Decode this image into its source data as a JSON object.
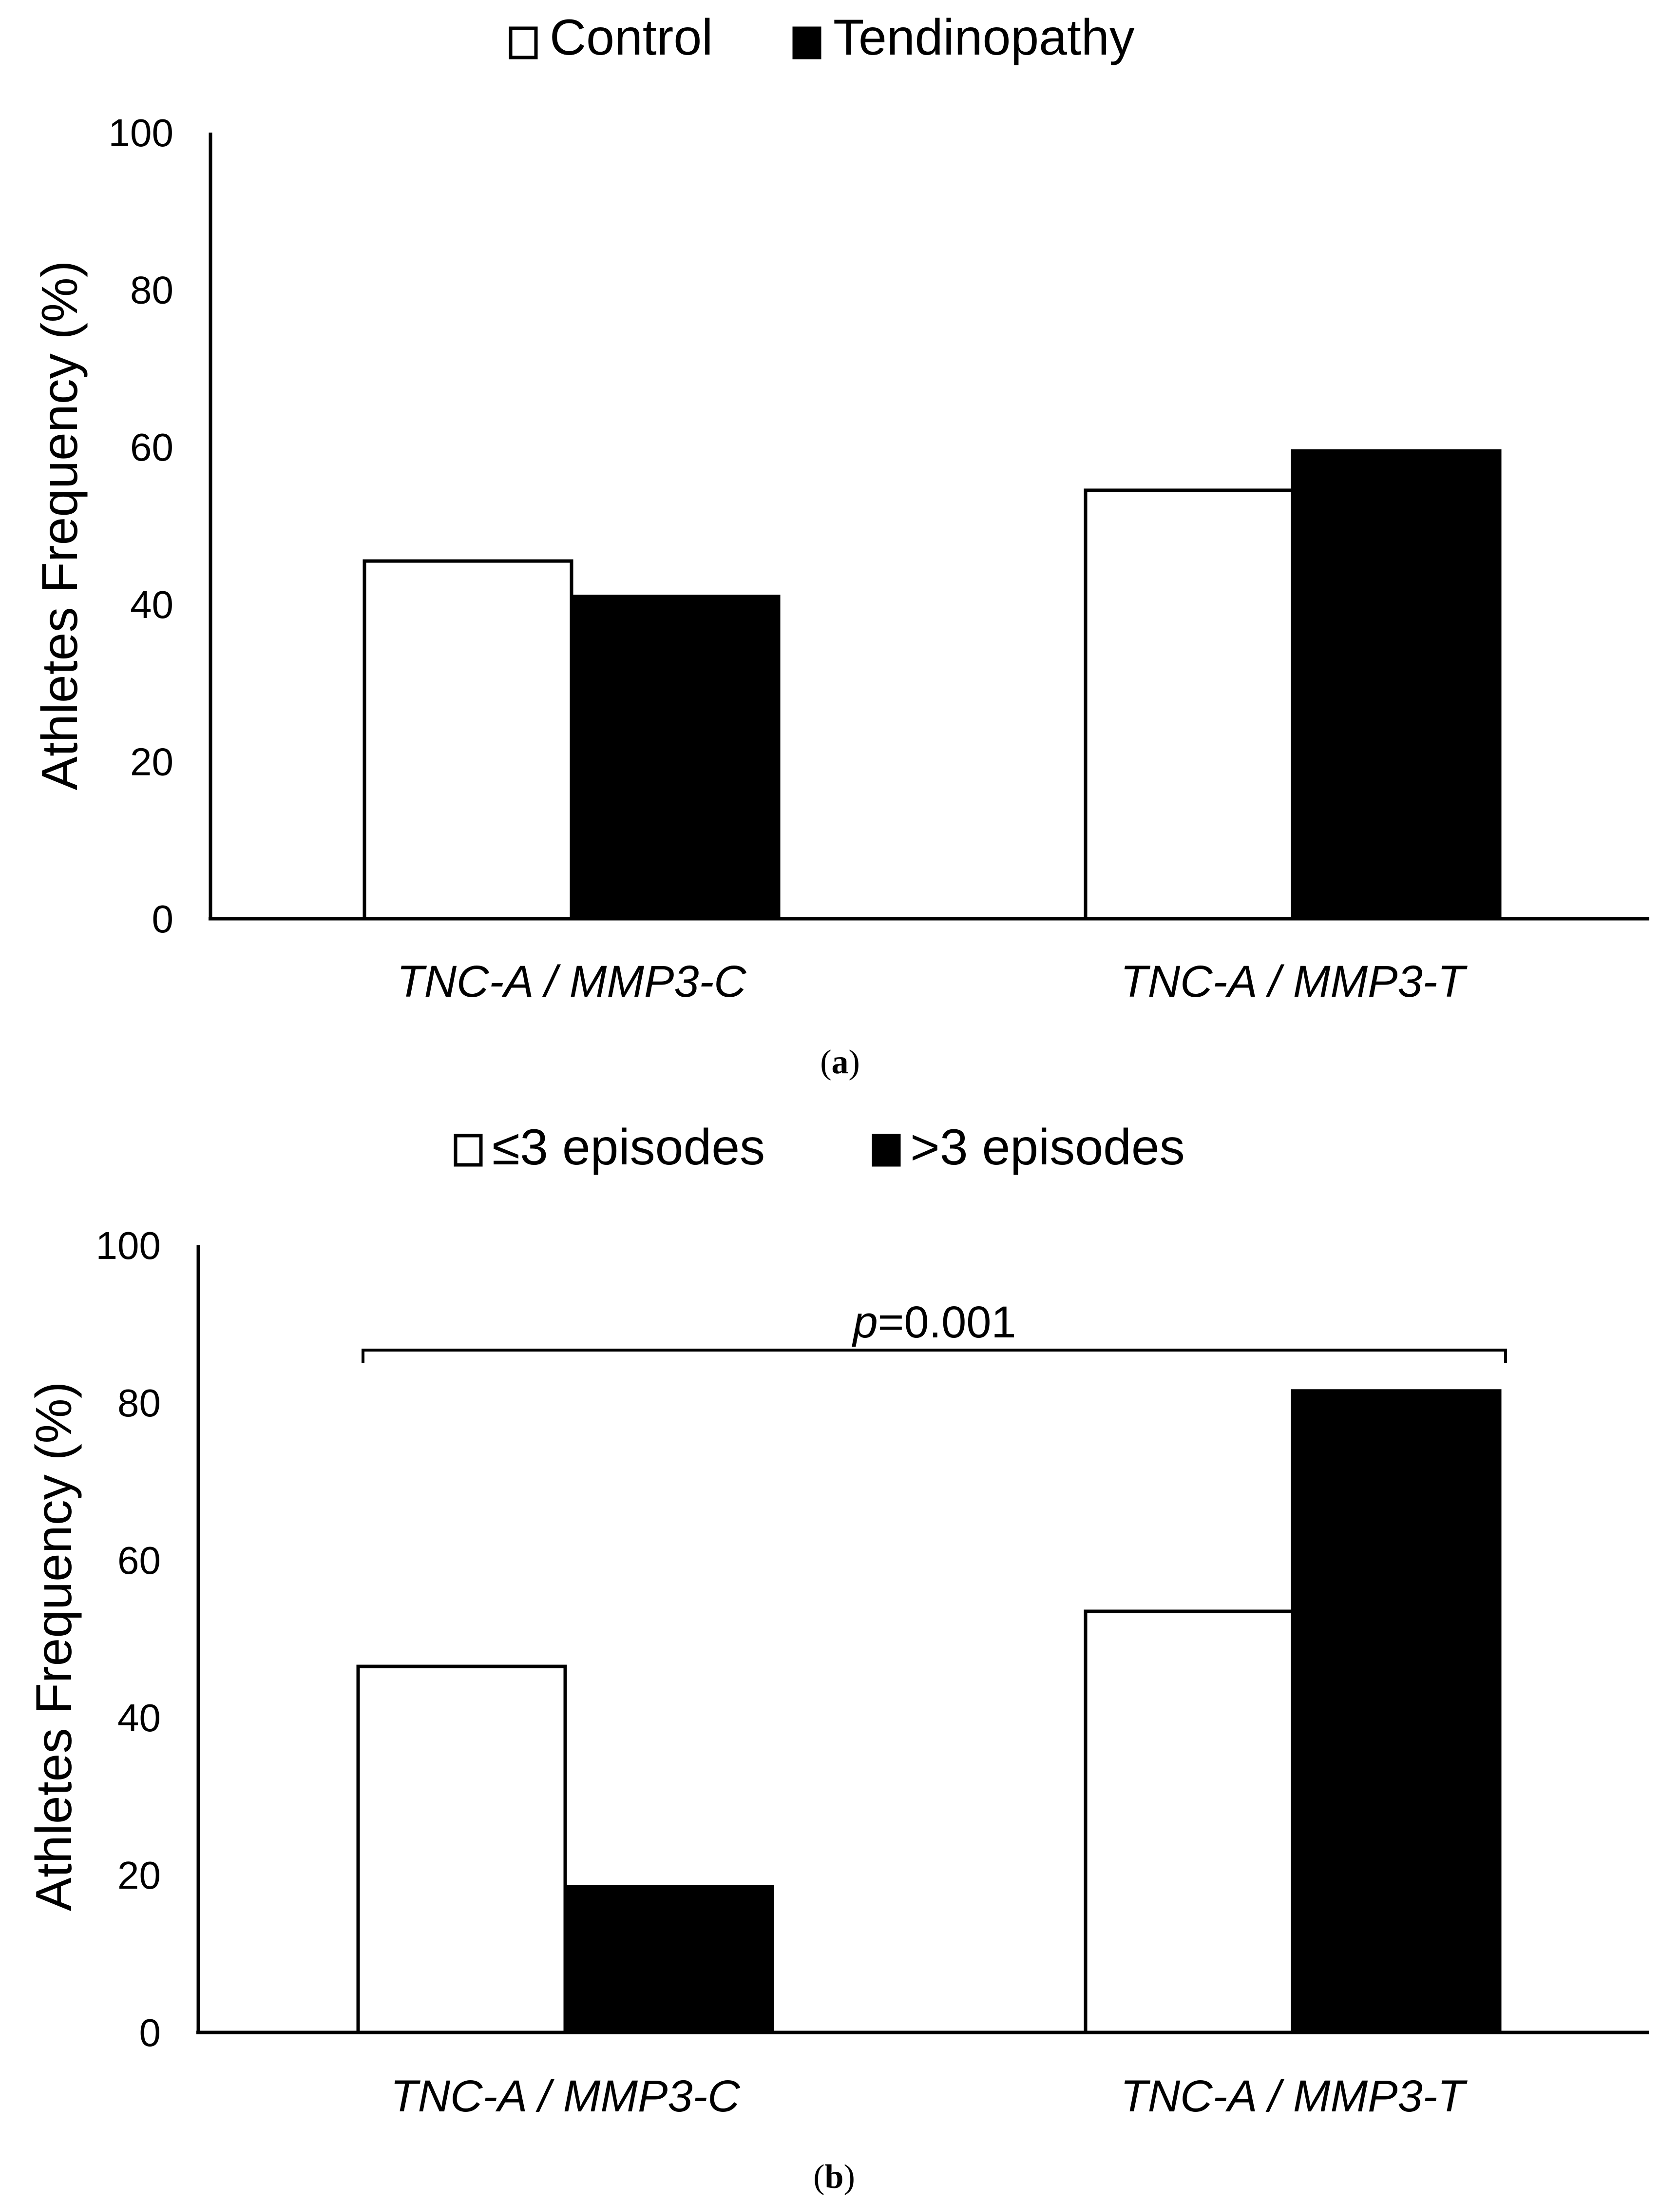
{
  "chart_data": [
    {
      "type": "bar",
      "panel_label": "a",
      "title": "",
      "xlabel": "",
      "ylabel": "Athletes Frequency (%)",
      "ylim": [
        0,
        100
      ],
      "yticks": [
        0,
        20,
        40,
        60,
        80,
        100
      ],
      "grid": false,
      "legend_position": "top-center",
      "categories": [
        "TNC-A / MMP3-C",
        "TNC-A / MMP3-T"
      ],
      "series": [
        {
          "name": "Control",
          "color": "#ffffff",
          "values": [
            45.5,
            54.5
          ]
        },
        {
          "name": "Tendinopathy",
          "color": "#000000",
          "values": [
            41,
            59.5
          ]
        }
      ]
    },
    {
      "type": "bar",
      "panel_label": "b",
      "title": "",
      "xlabel": "",
      "ylabel": "Athletes Frequency (%)",
      "ylim": [
        0,
        100
      ],
      "yticks": [
        0,
        20,
        40,
        60,
        80,
        100
      ],
      "grid": false,
      "legend_position": "top-center",
      "categories": [
        "TNC-A / MMP3-C",
        "TNC-A / MMP3-T"
      ],
      "series": [
        {
          "name": "≤3 episodes",
          "color": "#ffffff",
          "values": [
            46.5,
            53.5
          ]
        },
        {
          "name": ">3 episodes",
          "color": "#000000",
          "values": [
            18.5,
            81.5
          ]
        }
      ],
      "annotation": {
        "prefix": "p",
        "text": "=0.001",
        "between": [
          "TNC-A / MMP3-C",
          "TNC-A / MMP3-T"
        ]
      }
    }
  ]
}
